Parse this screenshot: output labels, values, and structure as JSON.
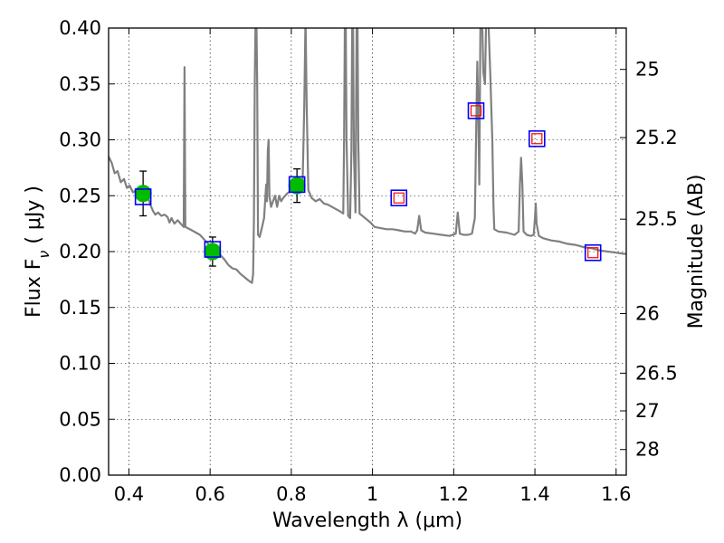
{
  "chart_data": {
    "type": "line",
    "xlabel": "Wavelength  λ (μm)",
    "ylabel": "Flux  F",
    "ylabel_sub": "ν",
    "ylabel_unit": "  ( μJy )",
    "y2label": "Magnitude (AB)",
    "xlim": [
      0.35,
      1.625
    ],
    "ylim": [
      0.0,
      0.4
    ],
    "grid": true,
    "x_ticks": [
      0.4,
      0.6,
      0.8,
      1.0,
      1.2,
      1.4,
      1.6
    ],
    "x_tick_labels": [
      "0.4",
      "0.6",
      "0.8",
      "1",
      "1.2",
      "1.4",
      "1.6"
    ],
    "y_ticks": [
      0.0,
      0.05,
      0.1,
      0.15,
      0.2,
      0.25,
      0.3,
      0.35,
      0.4
    ],
    "y_tick_labels": [
      "0.00",
      "0.05",
      "0.10",
      "0.15",
      "0.20",
      "0.25",
      "0.30",
      "0.35",
      "0.40"
    ],
    "y2_ticks": [
      {
        "label": "25",
        "flux": 0.363
      },
      {
        "label": "25.2",
        "flux": 0.302
      },
      {
        "label": "25.5",
        "flux": 0.229
      },
      {
        "label": "26",
        "flux": 0.1445
      },
      {
        "label": "26.5",
        "flux": 0.0912
      },
      {
        "label": "27",
        "flux": 0.0575
      },
      {
        "label": "28",
        "flux": 0.0229
      }
    ],
    "colors": {
      "model": "#808080",
      "observed": "#00bb00",
      "error_bar": "#000000",
      "model_box": "#0000ff",
      "prediction_box": "#ff0000"
    },
    "series": [
      {
        "kind": "model_spectrum",
        "points": [
          [
            0.35,
            0.285
          ],
          [
            0.358,
            0.279
          ],
          [
            0.365,
            0.27
          ],
          [
            0.372,
            0.272
          ],
          [
            0.38,
            0.262
          ],
          [
            0.388,
            0.265
          ],
          [
            0.395,
            0.257
          ],
          [
            0.402,
            0.259
          ],
          [
            0.41,
            0.253
          ],
          [
            0.418,
            0.255
          ],
          [
            0.425,
            0.252
          ],
          [
            0.432,
            0.254
          ],
          [
            0.44,
            0.25
          ],
          [
            0.448,
            0.247
          ],
          [
            0.455,
            0.24
          ],
          [
            0.46,
            0.236
          ],
          [
            0.465,
            0.233
          ],
          [
            0.472,
            0.235
          ],
          [
            0.48,
            0.232
          ],
          [
            0.488,
            0.233
          ],
          [
            0.495,
            0.231
          ],
          [
            0.5,
            0.226
          ],
          [
            0.505,
            0.23
          ],
          [
            0.512,
            0.225
          ],
          [
            0.52,
            0.228
          ],
          [
            0.53,
            0.224
          ],
          [
            0.535,
            0.222
          ],
          [
            0.537,
            0.365
          ],
          [
            0.539,
            0.222
          ],
          [
            0.545,
            0.221
          ],
          [
            0.555,
            0.219
          ],
          [
            0.565,
            0.217
          ],
          [
            0.575,
            0.215
          ],
          [
            0.585,
            0.211
          ],
          [
            0.595,
            0.207
          ],
          [
            0.605,
            0.202
          ],
          [
            0.615,
            0.2
          ],
          [
            0.625,
            0.197
          ],
          [
            0.635,
            0.193
          ],
          [
            0.645,
            0.188
          ],
          [
            0.655,
            0.185
          ],
          [
            0.665,
            0.184
          ],
          [
            0.675,
            0.18
          ],
          [
            0.685,
            0.177
          ],
          [
            0.695,
            0.174
          ],
          [
            0.703,
            0.172
          ],
          [
            0.706,
            0.18
          ],
          [
            0.708,
            0.23
          ],
          [
            0.71,
            0.35
          ],
          [
            0.712,
            0.41
          ],
          [
            0.714,
            0.41
          ],
          [
            0.716,
            0.35
          ],
          [
            0.718,
            0.215
          ],
          [
            0.722,
            0.213
          ],
          [
            0.728,
            0.222
          ],
          [
            0.733,
            0.23
          ],
          [
            0.738,
            0.26
          ],
          [
            0.74,
            0.245
          ],
          [
            0.742,
            0.29
          ],
          [
            0.744,
            0.3
          ],
          [
            0.746,
            0.25
          ],
          [
            0.75,
            0.24
          ],
          [
            0.755,
            0.245
          ],
          [
            0.76,
            0.25
          ],
          [
            0.765,
            0.24
          ],
          [
            0.77,
            0.25
          ],
          [
            0.775,
            0.245
          ],
          [
            0.78,
            0.248
          ],
          [
            0.79,
            0.252
          ],
          [
            0.8,
            0.255
          ],
          [
            0.81,
            0.258
          ],
          [
            0.82,
            0.26
          ],
          [
            0.828,
            0.262
          ],
          [
            0.832,
            0.33
          ],
          [
            0.835,
            0.41
          ],
          [
            0.838,
            0.33
          ],
          [
            0.842,
            0.255
          ],
          [
            0.85,
            0.248
          ],
          [
            0.86,
            0.245
          ],
          [
            0.87,
            0.247
          ],
          [
            0.88,
            0.243
          ],
          [
            0.89,
            0.242
          ],
          [
            0.9,
            0.24
          ],
          [
            0.91,
            0.238
          ],
          [
            0.92,
            0.236
          ],
          [
            0.928,
            0.234
          ],
          [
            0.93,
            0.3
          ],
          [
            0.932,
            0.41
          ],
          [
            0.934,
            0.41
          ],
          [
            0.936,
            0.3
          ],
          [
            0.94,
            0.232
          ],
          [
            0.945,
            0.23
          ],
          [
            0.948,
            0.29
          ],
          [
            0.95,
            0.41
          ],
          [
            0.952,
            0.41
          ],
          [
            0.954,
            0.29
          ],
          [
            0.958,
            0.235
          ],
          [
            0.961,
            0.41
          ],
          [
            0.963,
            0.41
          ],
          [
            0.965,
            0.3
          ],
          [
            0.968,
            0.234
          ],
          [
            0.975,
            0.232
          ],
          [
            0.985,
            0.229
          ],
          [
            0.995,
            0.226
          ],
          [
            1.0,
            0.224
          ],
          [
            1.005,
            0.222
          ],
          [
            1.02,
            0.221
          ],
          [
            1.035,
            0.22
          ],
          [
            1.05,
            0.22
          ],
          [
            1.065,
            0.219
          ],
          [
            1.08,
            0.218
          ],
          [
            1.095,
            0.218
          ],
          [
            1.105,
            0.216
          ],
          [
            1.11,
            0.219
          ],
          [
            1.115,
            0.232
          ],
          [
            1.12,
            0.219
          ],
          [
            1.13,
            0.217
          ],
          [
            1.15,
            0.216
          ],
          [
            1.17,
            0.215
          ],
          [
            1.19,
            0.214
          ],
          [
            1.205,
            0.216
          ],
          [
            1.21,
            0.235
          ],
          [
            1.215,
            0.216
          ],
          [
            1.225,
            0.215
          ],
          [
            1.235,
            0.215
          ],
          [
            1.245,
            0.216
          ],
          [
            1.252,
            0.23
          ],
          [
            1.255,
            0.3
          ],
          [
            1.258,
            0.37
          ],
          [
            1.26,
            0.335
          ],
          [
            1.263,
            0.26
          ],
          [
            1.266,
            0.41
          ],
          [
            1.27,
            0.41
          ],
          [
            1.273,
            0.36
          ],
          [
            1.277,
            0.35
          ],
          [
            1.28,
            0.41
          ],
          [
            1.285,
            0.41
          ],
          [
            1.29,
            0.36
          ],
          [
            1.295,
            0.3
          ],
          [
            1.298,
            0.24
          ],
          [
            1.3,
            0.22
          ],
          [
            1.31,
            0.218
          ],
          [
            1.33,
            0.217
          ],
          [
            1.35,
            0.215
          ],
          [
            1.36,
            0.218
          ],
          [
            1.363,
            0.26
          ],
          [
            1.366,
            0.284
          ],
          [
            1.369,
            0.26
          ],
          [
            1.372,
            0.218
          ],
          [
            1.38,
            0.215
          ],
          [
            1.39,
            0.214
          ],
          [
            1.397,
            0.215
          ],
          [
            1.4,
            0.23
          ],
          [
            1.402,
            0.243
          ],
          [
            1.404,
            0.225
          ],
          [
            1.41,
            0.214
          ],
          [
            1.42,
            0.212
          ],
          [
            1.44,
            0.21
          ],
          [
            1.46,
            0.209
          ],
          [
            1.48,
            0.207
          ],
          [
            1.5,
            0.206
          ],
          [
            1.52,
            0.204
          ],
          [
            1.54,
            0.203
          ],
          [
            1.56,
            0.201
          ],
          [
            1.58,
            0.2
          ],
          [
            1.6,
            0.199
          ],
          [
            1.62,
            0.198
          ],
          [
            1.625,
            0.198
          ]
        ]
      },
      {
        "kind": "observed_photometry",
        "points": [
          {
            "x": 0.435,
            "y": 0.252,
            "yerr": 0.02
          },
          {
            "x": 0.606,
            "y": 0.2,
            "yerr": 0.013
          },
          {
            "x": 0.814,
            "y": 0.259,
            "yerr": 0.015
          }
        ]
      },
      {
        "kind": "model_photometry",
        "points": [
          {
            "x": 0.435,
            "y": 0.249
          },
          {
            "x": 0.606,
            "y": 0.202
          },
          {
            "x": 0.814,
            "y": 0.26
          },
          {
            "x": 1.065,
            "y": 0.248
          },
          {
            "x": 1.255,
            "y": 0.326
          },
          {
            "x": 1.405,
            "y": 0.301
          },
          {
            "x": 1.543,
            "y": 0.199
          }
        ]
      },
      {
        "kind": "predicted_photometry",
        "points": [
          {
            "x": 1.065,
            "y": 0.248
          },
          {
            "x": 1.255,
            "y": 0.326
          },
          {
            "x": 1.405,
            "y": 0.301
          },
          {
            "x": 1.543,
            "y": 0.199
          }
        ]
      }
    ]
  }
}
